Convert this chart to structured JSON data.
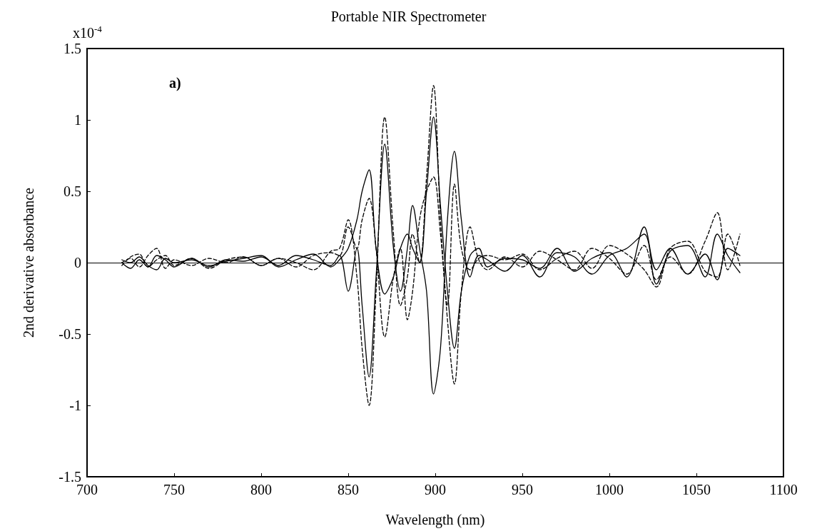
{
  "chart_data": {
    "type": "line",
    "title": "Portable NIR Spectrometer",
    "xlabel": "Wavelength (nm)",
    "ylabel": "2nd derivative absorbance",
    "annotations": [
      "x10$^{-4}$",
      "a)"
    ],
    "x": [
      720,
      725,
      730,
      735,
      740,
      745,
      750,
      760,
      770,
      780,
      790,
      800,
      810,
      820,
      830,
      840,
      845,
      850,
      855,
      858,
      862,
      866,
      871,
      876,
      880,
      884,
      887,
      891,
      895,
      899,
      903,
      907,
      911,
      915,
      920,
      925,
      930,
      940,
      950,
      960,
      970,
      980,
      990,
      1000,
      1010,
      1020,
      1027,
      1035,
      1045,
      1055,
      1062,
      1068,
      1075
    ],
    "series": [
      {
        "color": "#000000",
        "line_style": "dashed",
        "values": [
          0,
          0.03,
          -0.03,
          0.05,
          0.1,
          -0.04,
          0.02,
          -0.02,
          0.03,
          0,
          0.04,
          -0.02,
          0.03,
          0,
          -0.05,
          0.08,
          0.1,
          0.3,
          -0.1,
          -0.6,
          -1.0,
          -0.2,
          1.02,
          0.2,
          -0.3,
          -0.1,
          0.2,
          0,
          0.6,
          1.24,
          0.3,
          -0.4,
          -0.85,
          -0.2,
          0.25,
          0.02,
          -0.05,
          0.04,
          -0.03,
          0.08,
          0.02,
          -0.05,
          0.1,
          0.03,
          -0.08,
          0.12,
          -0.12,
          0.04,
          -0.08,
          0.15,
          0.35,
          -0.05,
          0.2
        ]
      },
      {
        "color": "#000000",
        "line_style": "solid",
        "values": [
          0,
          -0.04,
          0.02,
          -0.03,
          0.05,
          0.02,
          -0.03,
          0.03,
          -0.03,
          0.02,
          0.01,
          0.04,
          -0.02,
          0.05,
          0.02,
          -0.02,
          0.05,
          -0.2,
          0.1,
          -0.3,
          -0.8,
          -0.1,
          0.83,
          0.1,
          -0.2,
          0.1,
          0.4,
          0.1,
          -0.2,
          -0.92,
          -0.6,
          0.3,
          0.78,
          0.3,
          -0.1,
          0.05,
          0.02,
          -0.06,
          0.05,
          -0.1,
          0.07,
          0.04,
          -0.08,
          0.05,
          0.1,
          0.2,
          -0.15,
          0.08,
          0.12,
          -0.1,
          0.2,
          0.05,
          -0.07
        ]
      },
      {
        "color": "#000000",
        "line_style": "solid",
        "values": [
          0.02,
          0,
          0.04,
          -0.02,
          -0.05,
          0.03,
          0,
          0.02,
          -0.02,
          0.01,
          0.03,
          0.05,
          -0.03,
          0.02,
          0.06,
          -0.03,
          0.02,
          0.1,
          0.3,
          0.5,
          0.65,
          0.1,
          -0.22,
          -0.1,
          0.1,
          0.2,
          0.1,
          0,
          0.5,
          1.02,
          0.4,
          -0.2,
          -0.6,
          -0.2,
          0.05,
          0.1,
          -0.03,
          0.03,
          0.02,
          -0.04,
          0.1,
          -0.06,
          0.03,
          0.07,
          -0.1,
          0.25,
          -0.05,
          0.1,
          -0.08,
          0.06,
          -0.12,
          0.1,
          0.05
        ]
      },
      {
        "color": "#000000",
        "line_style": "dashed",
        "values": [
          -0.02,
          0.04,
          0.06,
          -0.03,
          0.02,
          0.05,
          -0.02,
          0.03,
          -0.04,
          0.02,
          0.04,
          -0.02,
          0.03,
          -0.03,
          0.05,
          0.07,
          0.05,
          0.25,
          0.1,
          0.3,
          0.45,
          0.1,
          -0.52,
          -0.1,
          0.1,
          -0.4,
          -0.2,
          0.3,
          0.5,
          0.6,
          0.2,
          -0.3,
          0.55,
          0.1,
          -0.05,
          0.03,
          0.05,
          0.02,
          0.06,
          -0.05,
          0.03,
          0.08,
          -0.04,
          0.12,
          0.06,
          -0.05,
          -0.17,
          0.1,
          0.15,
          -0.06,
          -0.1,
          0.2,
          -0.02
        ]
      }
    ],
    "xlim": [
      700,
      1100
    ],
    "xticks": [
      700,
      750,
      800,
      850,
      900,
      950,
      1000,
      1050,
      1100
    ],
    "ylim": [
      -1.5,
      1.5
    ],
    "yticks": [
      -1.5,
      -1,
      -0.5,
      0,
      0.5,
      1,
      1.5
    ],
    "ref_lines": [
      {
        "axis": "y",
        "value": 0,
        "color": "#000000"
      }
    ],
    "grid": false,
    "marker": "none"
  }
}
